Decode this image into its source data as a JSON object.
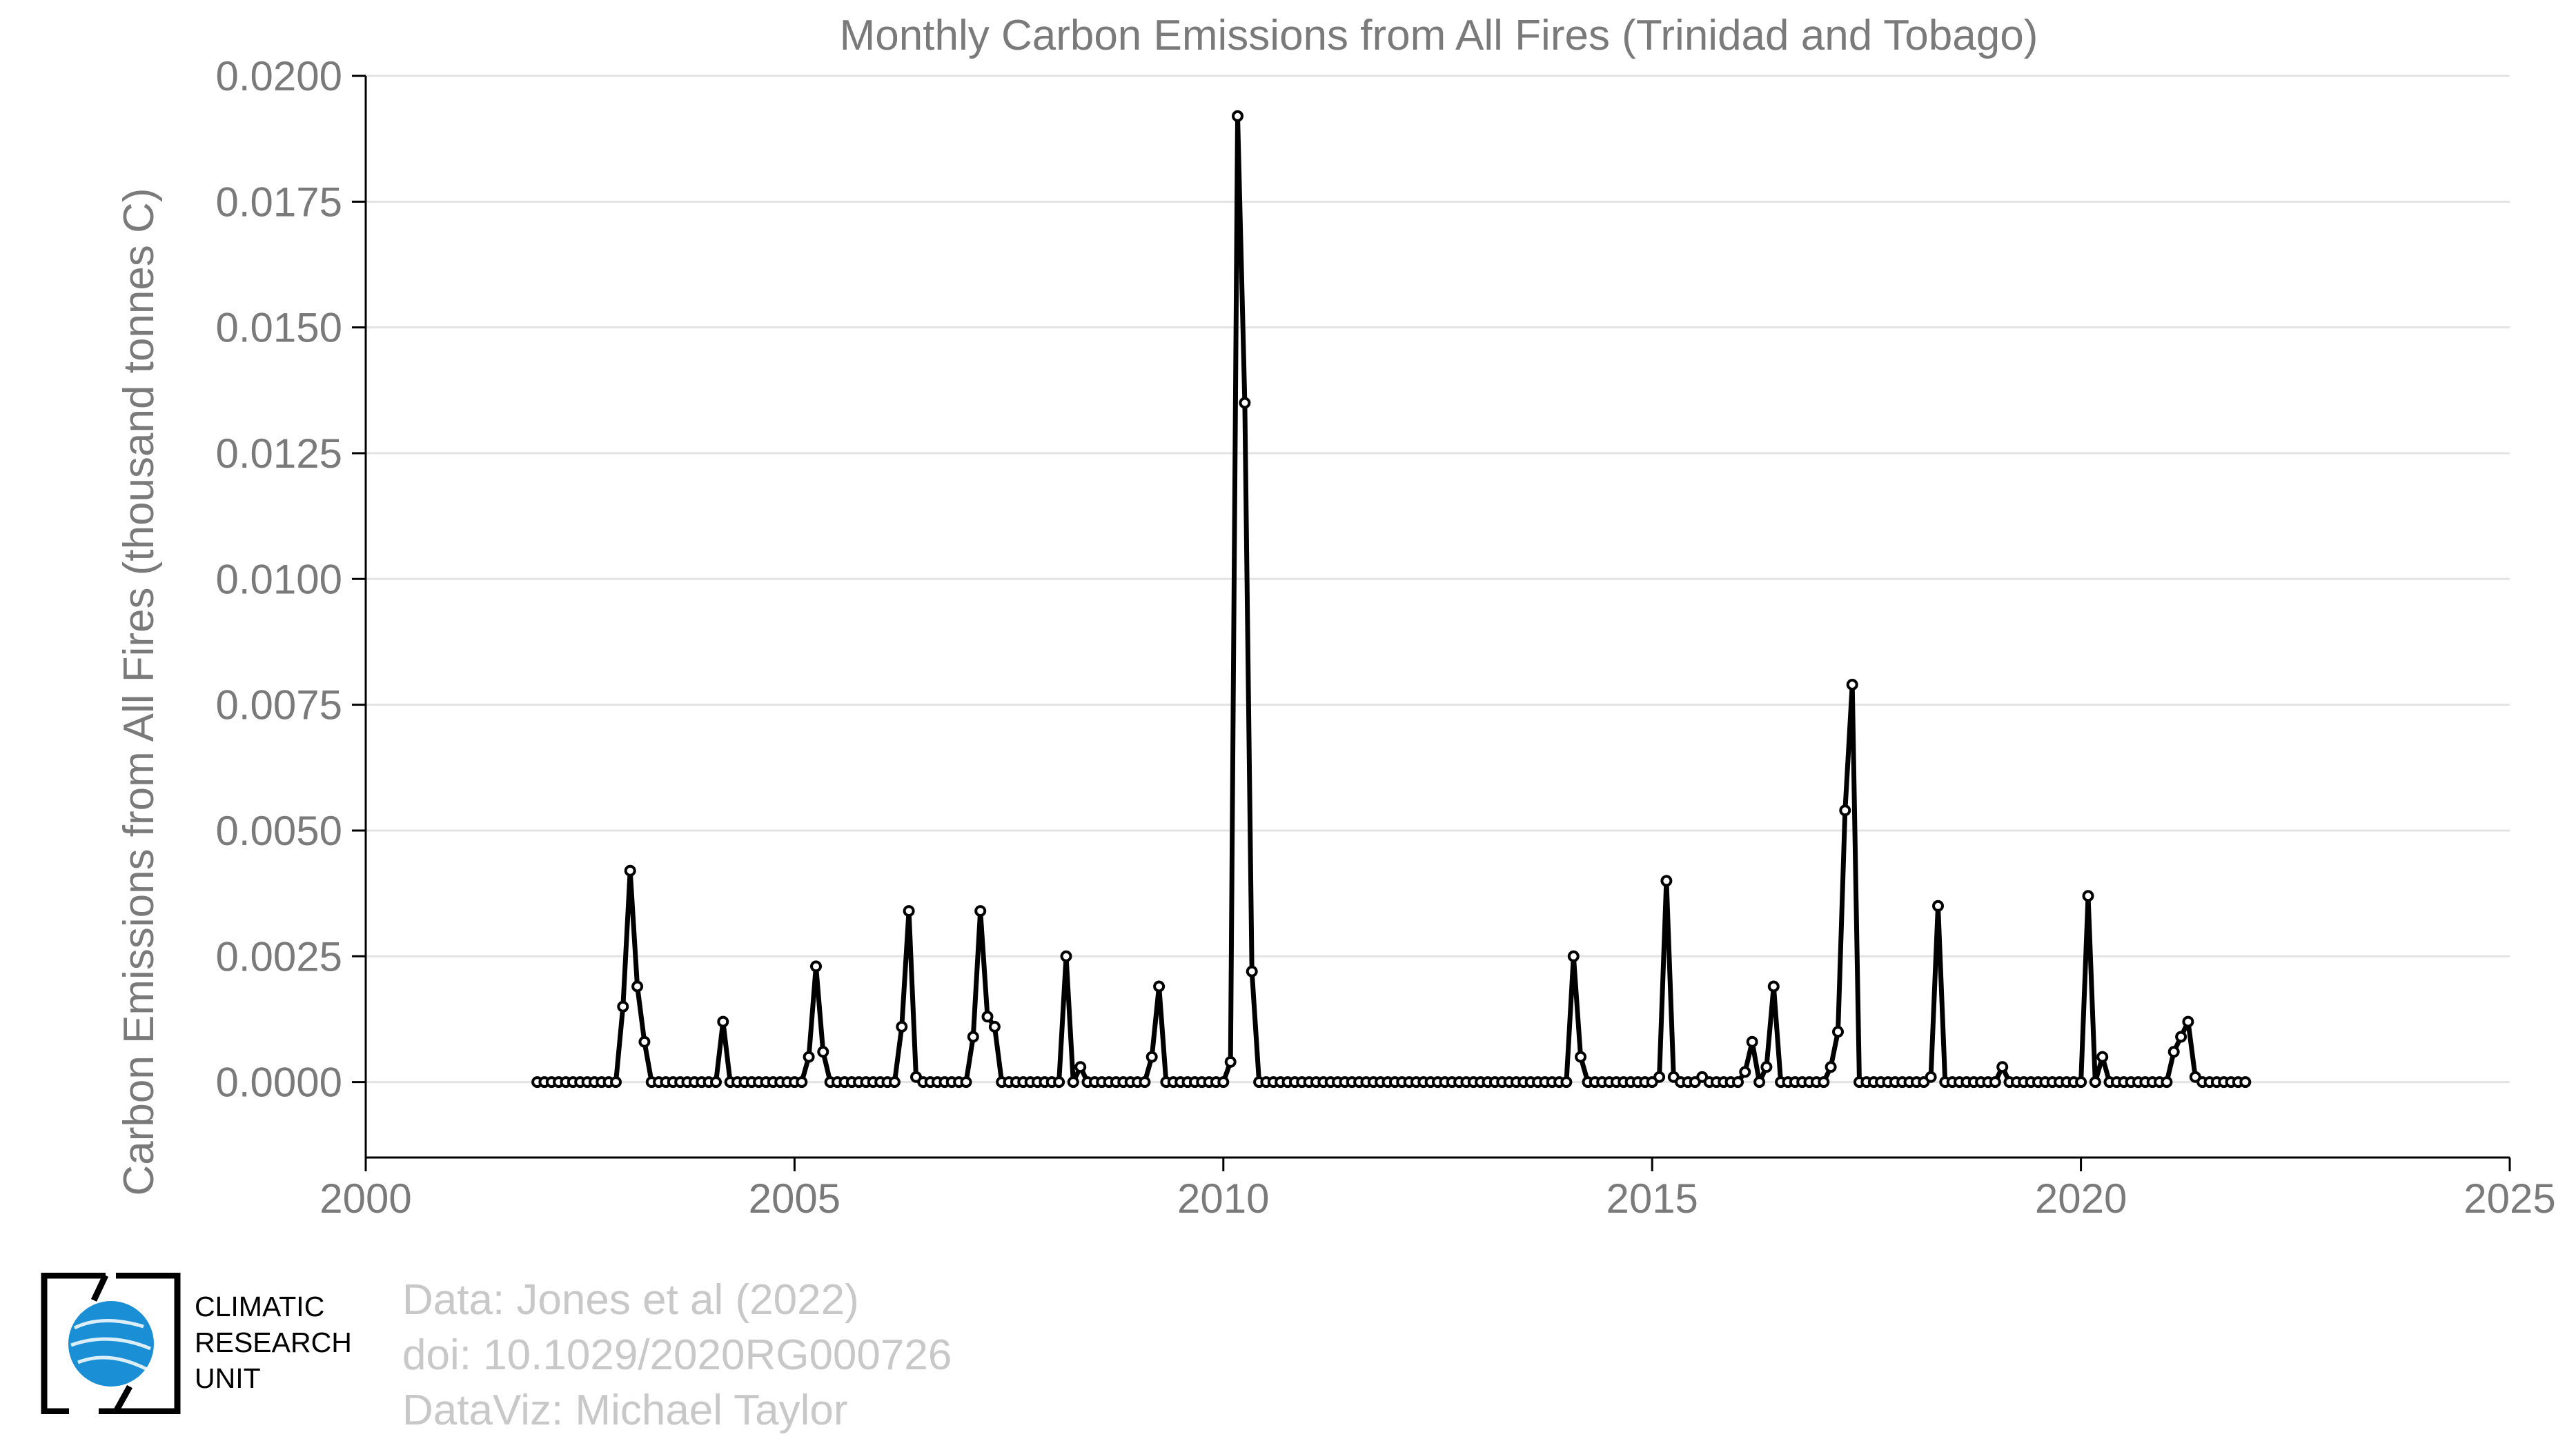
{
  "chart_data": {
    "type": "line",
    "title": "Monthly Carbon Emissions from All Fires (Trinidad and Tobago)",
    "xlabel": "",
    "ylabel": "Carbon Emissions from All Fires (thousand tonnes C)",
    "xlim": [
      2000,
      2025
    ],
    "ylim": [
      -0.0015,
      0.02
    ],
    "x_ticks": [
      "2000",
      "2005",
      "2010",
      "2015",
      "2020",
      "2025"
    ],
    "y_ticks": [
      "0.0000",
      "0.0025",
      "0.0050",
      "0.0075",
      "0.0100",
      "0.0125",
      "0.0150",
      "0.0175",
      "0.0200"
    ],
    "grid": "horizontal",
    "x_start": "2002-01",
    "x_step": "1 month",
    "series": [
      {
        "values": [
          0,
          0,
          0,
          0,
          0,
          0,
          0,
          0,
          0,
          0,
          0,
          0,
          0.0015,
          0.0042,
          0.0019,
          0.0008,
          0,
          0,
          0,
          0,
          0,
          0,
          0,
          0,
          0,
          0,
          0.0012,
          0,
          0,
          0,
          0,
          0,
          0,
          0,
          0,
          0,
          0,
          0,
          0.0005,
          0.0023,
          0.0006,
          0,
          0,
          0,
          0,
          0,
          0,
          0,
          0,
          0,
          0,
          0.0011,
          0.0034,
          0.0001,
          0,
          0,
          0,
          0,
          0,
          0,
          0,
          0.0009,
          0.0034,
          0.0013,
          0.0011,
          0,
          0,
          0,
          0,
          0,
          0,
          0,
          0,
          0,
          0.0025,
          0,
          0.0003,
          0,
          0,
          0,
          0,
          0,
          0,
          0,
          0,
          0,
          0.0005,
          0.0019,
          0,
          0,
          0,
          0,
          0,
          0,
          0,
          0,
          0,
          0.0004,
          0.0192,
          0.0135,
          0.0022,
          0,
          0,
          0,
          0,
          0,
          0,
          0,
          0,
          0,
          0,
          0,
          0,
          0,
          0,
          0,
          0,
          0,
          0,
          0,
          0,
          0,
          0,
          0,
          0,
          0,
          0,
          0,
          0,
          0,
          0,
          0,
          0,
          0,
          0,
          0,
          0,
          0,
          0,
          0,
          0,
          0,
          0,
          0,
          0,
          0.0025,
          0.0005,
          0,
          0,
          0,
          0,
          0,
          0,
          0,
          0,
          0,
          0,
          0.0001,
          0.004,
          0.0001,
          0,
          0,
          0,
          0.0001,
          0,
          0,
          0,
          0,
          0,
          0.0002,
          0.0008,
          0,
          0.0003,
          0.0019,
          0,
          0,
          0,
          0,
          0,
          0,
          0,
          0.0003,
          0.001,
          0.0054,
          0.0079,
          0,
          0,
          0,
          0,
          0,
          0,
          0,
          0,
          0,
          0,
          0.0001,
          0.0035,
          0,
          0,
          0,
          0,
          0,
          0,
          0,
          0,
          0.0003,
          0,
          0,
          0,
          0,
          0,
          0,
          0,
          0,
          0,
          0,
          0,
          0.0037,
          0,
          0.0005,
          0,
          0,
          0,
          0,
          0,
          0,
          0,
          0,
          0,
          0.0006,
          0.0009,
          0.0012,
          0.0001,
          0,
          0,
          0,
          0,
          0,
          0,
          0
        ]
      }
    ]
  },
  "logo": {
    "line1": "CLIMATIC",
    "line2": "RESEARCH",
    "line3": "UNIT"
  },
  "credits": {
    "line1": "Data: Jones et al (2022)",
    "line2": "doi: 10.1029/2020RG000726",
    "line3": "DataViz: Michael Taylor"
  },
  "colors": {
    "line": "#000000",
    "marker_fill": "#ffffff",
    "grid": "#e3e3e3",
    "axis": "#000000",
    "text": "#7a7a7a",
    "credits": "#c8c8c8",
    "logo_blue": "#1a8fd6"
  }
}
